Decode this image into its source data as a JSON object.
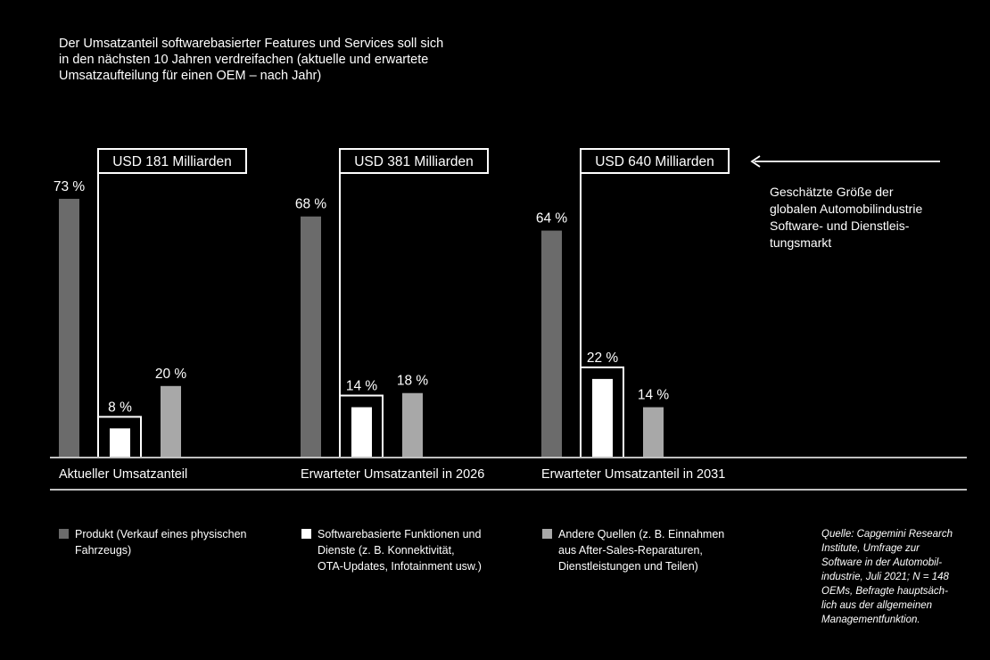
{
  "title_lines": [
    "Der Umsatzanteil softwarebasierter Features und Services soll sich",
    "in den nächsten 10 Jahren verdreifachen (aktuelle und erwartete",
    "Umsatzaufteilung für einen OEM – nach Jahr)"
  ],
  "annotation_lines": [
    "Geschätzte Größe der",
    "globalen Automobilindustrie",
    "Software- und Dienstleis-",
    "tungsmarkt"
  ],
  "legend": [
    {
      "lines": [
        "Produkt (Verkauf eines physischen",
        "Fahrzeugs)"
      ],
      "color": "#6b6b6b"
    },
    {
      "lines": [
        "Softwarebasierte Funktionen und",
        "Dienste (z. B. Konnektivität,",
        "OTA-Updates, Infotainment usw.)"
      ],
      "color": "#ffffff"
    },
    {
      "lines": [
        "Andere Quellen (z. B. Einnahmen",
        "aus After-Sales-Reparaturen,",
        "Dienstleistungen und Teilen)"
      ],
      "color": "#a8a8a8"
    }
  ],
  "source_lines": [
    "Quelle: Capgemini Research",
    "Institute, Umfrage zur",
    "Software in der Automobil-",
    "industrie, Juli 2021; N = 148",
    "OEMs, Befragte hauptsäch-",
    "lich aus der allgemeinen",
    "Managementfunktion."
  ],
  "chart_data": {
    "type": "bar",
    "groups": [
      {
        "label": "Aktueller Umsatzanteil",
        "market_size": "USD 181 Milliarden",
        "values": [
          73,
          8,
          20
        ]
      },
      {
        "label": "Erwarteter Umsatzanteil in 2026",
        "market_size": "USD 381 Milliarden",
        "values": [
          68,
          14,
          18
        ]
      },
      {
        "label": "Erwarteter Umsatzanteil in 2031",
        "market_size": "USD 640 Milliarden",
        "values": [
          64,
          22,
          14
        ]
      }
    ],
    "series": [
      {
        "name": "Produkt (Verkauf eines physischen Fahrzeugs)",
        "color": "#6b6b6b"
      },
      {
        "name": "Softwarebasierte Funktionen und Dienste (z. B. Konnektivität, OTA-Updates, Infotainment usw.)",
        "color": "#ffffff"
      },
      {
        "name": "Andere Quellen (z. B. Einnahmen aus After-Sales-Reparaturen, Dienstleistungen und Teilen)",
        "color": "#a8a8a8"
      }
    ],
    "unit": "%",
    "ylim": [
      0,
      100
    ],
    "grid": false,
    "legend_position": "bottom"
  },
  "colors": {
    "background": "#000000",
    "foreground": "#ffffff"
  }
}
